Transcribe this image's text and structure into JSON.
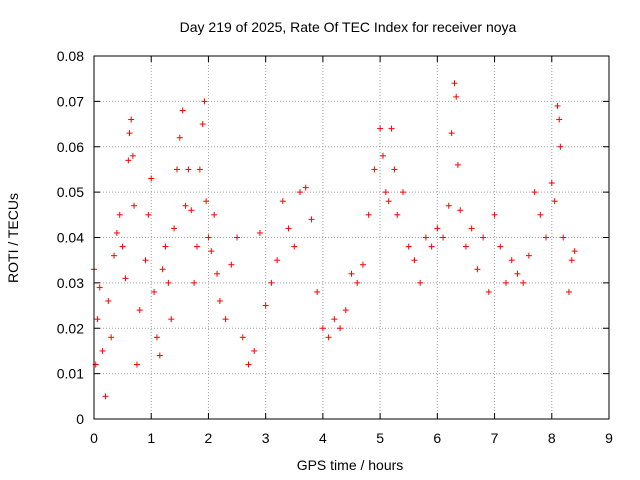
{
  "chart_data": {
    "type": "scatter",
    "title": "Day 219 of 2025, Rate Of TEC Index for receiver noya",
    "xlabel": "GPS time / hours",
    "ylabel": "ROTI / TECUs",
    "xlim": [
      0,
      9
    ],
    "ylim": [
      0,
      0.08
    ],
    "x_ticks": [
      0,
      1,
      2,
      3,
      4,
      5,
      6,
      7,
      8,
      9
    ],
    "y_ticks": [
      0,
      0.01,
      0.02,
      0.03,
      0.04,
      0.05,
      0.06,
      0.07,
      0.08
    ],
    "x_tick_labels": [
      "0",
      "1",
      "2",
      "3",
      "4",
      "5",
      "6",
      "7",
      "8",
      "9"
    ],
    "y_tick_labels": [
      "0",
      "0.01",
      "0.02",
      "0.03",
      "0.04",
      "0.05",
      "0.06",
      "0.07",
      "0.08"
    ],
    "grid": true,
    "marker": "+",
    "color": "#ff0000",
    "data_x_range": [
      0,
      8.4
    ],
    "series": [
      {
        "points": [
          [
            0.0,
            0.033
          ],
          [
            0.03,
            0.012
          ],
          [
            0.06,
            0.022
          ],
          [
            0.1,
            0.029
          ],
          [
            0.15,
            0.015
          ],
          [
            0.2,
            0.005
          ],
          [
            0.25,
            0.026
          ],
          [
            0.3,
            0.018
          ],
          [
            0.35,
            0.036
          ],
          [
            0.4,
            0.041
          ],
          [
            0.45,
            0.045
          ],
          [
            0.5,
            0.038
          ],
          [
            0.55,
            0.031
          ],
          [
            0.6,
            0.057
          ],
          [
            0.62,
            0.063
          ],
          [
            0.65,
            0.066
          ],
          [
            0.68,
            0.058
          ],
          [
            0.7,
            0.047
          ],
          [
            0.75,
            0.012
          ],
          [
            0.8,
            0.024
          ],
          [
            0.9,
            0.035
          ],
          [
            0.95,
            0.045
          ],
          [
            1.0,
            0.053
          ],
          [
            1.05,
            0.028
          ],
          [
            1.1,
            0.018
          ],
          [
            1.15,
            0.014
          ],
          [
            1.2,
            0.033
          ],
          [
            1.25,
            0.038
          ],
          [
            1.3,
            0.03
          ],
          [
            1.35,
            0.022
          ],
          [
            1.4,
            0.042
          ],
          [
            1.45,
            0.055
          ],
          [
            1.5,
            0.062
          ],
          [
            1.55,
            0.068
          ],
          [
            1.6,
            0.047
          ],
          [
            1.65,
            0.055
          ],
          [
            1.7,
            0.046
          ],
          [
            1.75,
            0.03
          ],
          [
            1.8,
            0.038
          ],
          [
            1.85,
            0.055
          ],
          [
            1.9,
            0.065
          ],
          [
            1.93,
            0.07
          ],
          [
            1.96,
            0.048
          ],
          [
            2.0,
            0.04
          ],
          [
            2.05,
            0.037
          ],
          [
            2.1,
            0.045
          ],
          [
            2.15,
            0.032
          ],
          [
            2.2,
            0.026
          ],
          [
            2.3,
            0.022
          ],
          [
            2.4,
            0.034
          ],
          [
            2.5,
            0.04
          ],
          [
            2.6,
            0.018
          ],
          [
            2.7,
            0.012
          ],
          [
            2.8,
            0.015
          ],
          [
            2.9,
            0.041
          ],
          [
            3.0,
            0.025
          ],
          [
            3.1,
            0.03
          ],
          [
            3.2,
            0.035
          ],
          [
            3.3,
            0.048
          ],
          [
            3.4,
            0.042
          ],
          [
            3.5,
            0.038
          ],
          [
            3.6,
            0.05
          ],
          [
            3.7,
            0.051
          ],
          [
            3.8,
            0.044
          ],
          [
            3.9,
            0.028
          ],
          [
            4.0,
            0.02
          ],
          [
            4.1,
            0.018
          ],
          [
            4.2,
            0.022
          ],
          [
            4.3,
            0.02
          ],
          [
            4.4,
            0.024
          ],
          [
            4.5,
            0.032
          ],
          [
            4.6,
            0.03
          ],
          [
            4.7,
            0.034
          ],
          [
            4.8,
            0.045
          ],
          [
            4.9,
            0.055
          ],
          [
            5.0,
            0.064
          ],
          [
            5.05,
            0.058
          ],
          [
            5.1,
            0.05
          ],
          [
            5.15,
            0.048
          ],
          [
            5.2,
            0.064
          ],
          [
            5.25,
            0.055
          ],
          [
            5.3,
            0.045
          ],
          [
            5.4,
            0.05
          ],
          [
            5.5,
            0.038
          ],
          [
            5.6,
            0.035
          ],
          [
            5.7,
            0.03
          ],
          [
            5.8,
            0.04
          ],
          [
            5.9,
            0.038
          ],
          [
            6.0,
            0.042
          ],
          [
            6.1,
            0.04
          ],
          [
            6.2,
            0.047
          ],
          [
            6.25,
            0.063
          ],
          [
            6.3,
            0.074
          ],
          [
            6.33,
            0.071
          ],
          [
            6.36,
            0.056
          ],
          [
            6.4,
            0.046
          ],
          [
            6.5,
            0.038
          ],
          [
            6.6,
            0.042
          ],
          [
            6.7,
            0.033
          ],
          [
            6.8,
            0.04
          ],
          [
            6.9,
            0.028
          ],
          [
            7.0,
            0.045
          ],
          [
            7.1,
            0.038
          ],
          [
            7.2,
            0.03
          ],
          [
            7.3,
            0.035
          ],
          [
            7.4,
            0.032
          ],
          [
            7.5,
            0.03
          ],
          [
            7.6,
            0.036
          ],
          [
            7.7,
            0.05
          ],
          [
            7.8,
            0.045
          ],
          [
            7.9,
            0.04
          ],
          [
            8.0,
            0.052
          ],
          [
            8.05,
            0.048
          ],
          [
            8.1,
            0.069
          ],
          [
            8.13,
            0.066
          ],
          [
            8.15,
            0.06
          ],
          [
            8.2,
            0.04
          ],
          [
            8.3,
            0.028
          ],
          [
            8.35,
            0.035
          ],
          [
            8.4,
            0.037
          ]
        ]
      }
    ]
  }
}
